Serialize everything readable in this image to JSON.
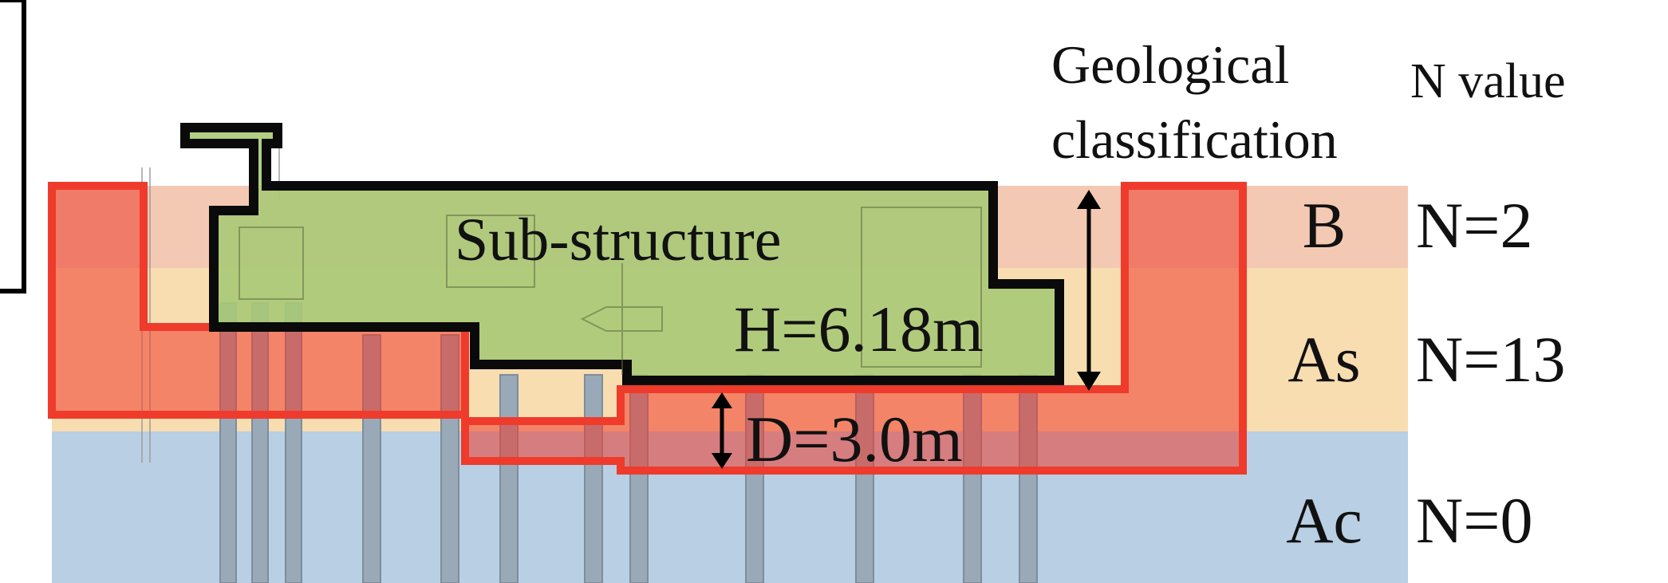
{
  "labels": {
    "substructure": "Sub-structure",
    "height": "H=6.18m",
    "depth": "D=3.0m"
  },
  "headers": {
    "geology_line1": "Geological",
    "geology_line2": "classification",
    "n_value": "N value"
  },
  "layers": [
    {
      "code": "B",
      "n": "N=2",
      "color": "#f3c9b3"
    },
    {
      "code": "As",
      "n": "N=13",
      "color": "#f8ddb0"
    },
    {
      "code": "Ac",
      "n": "N=0",
      "color": "#b9cfe4"
    }
  ],
  "colors": {
    "substructure_fill": "#a9c977",
    "substructure_outline": "#0a0a0a",
    "improved_zone": "#ee3b2c",
    "piles": "#9aa9b8"
  }
}
